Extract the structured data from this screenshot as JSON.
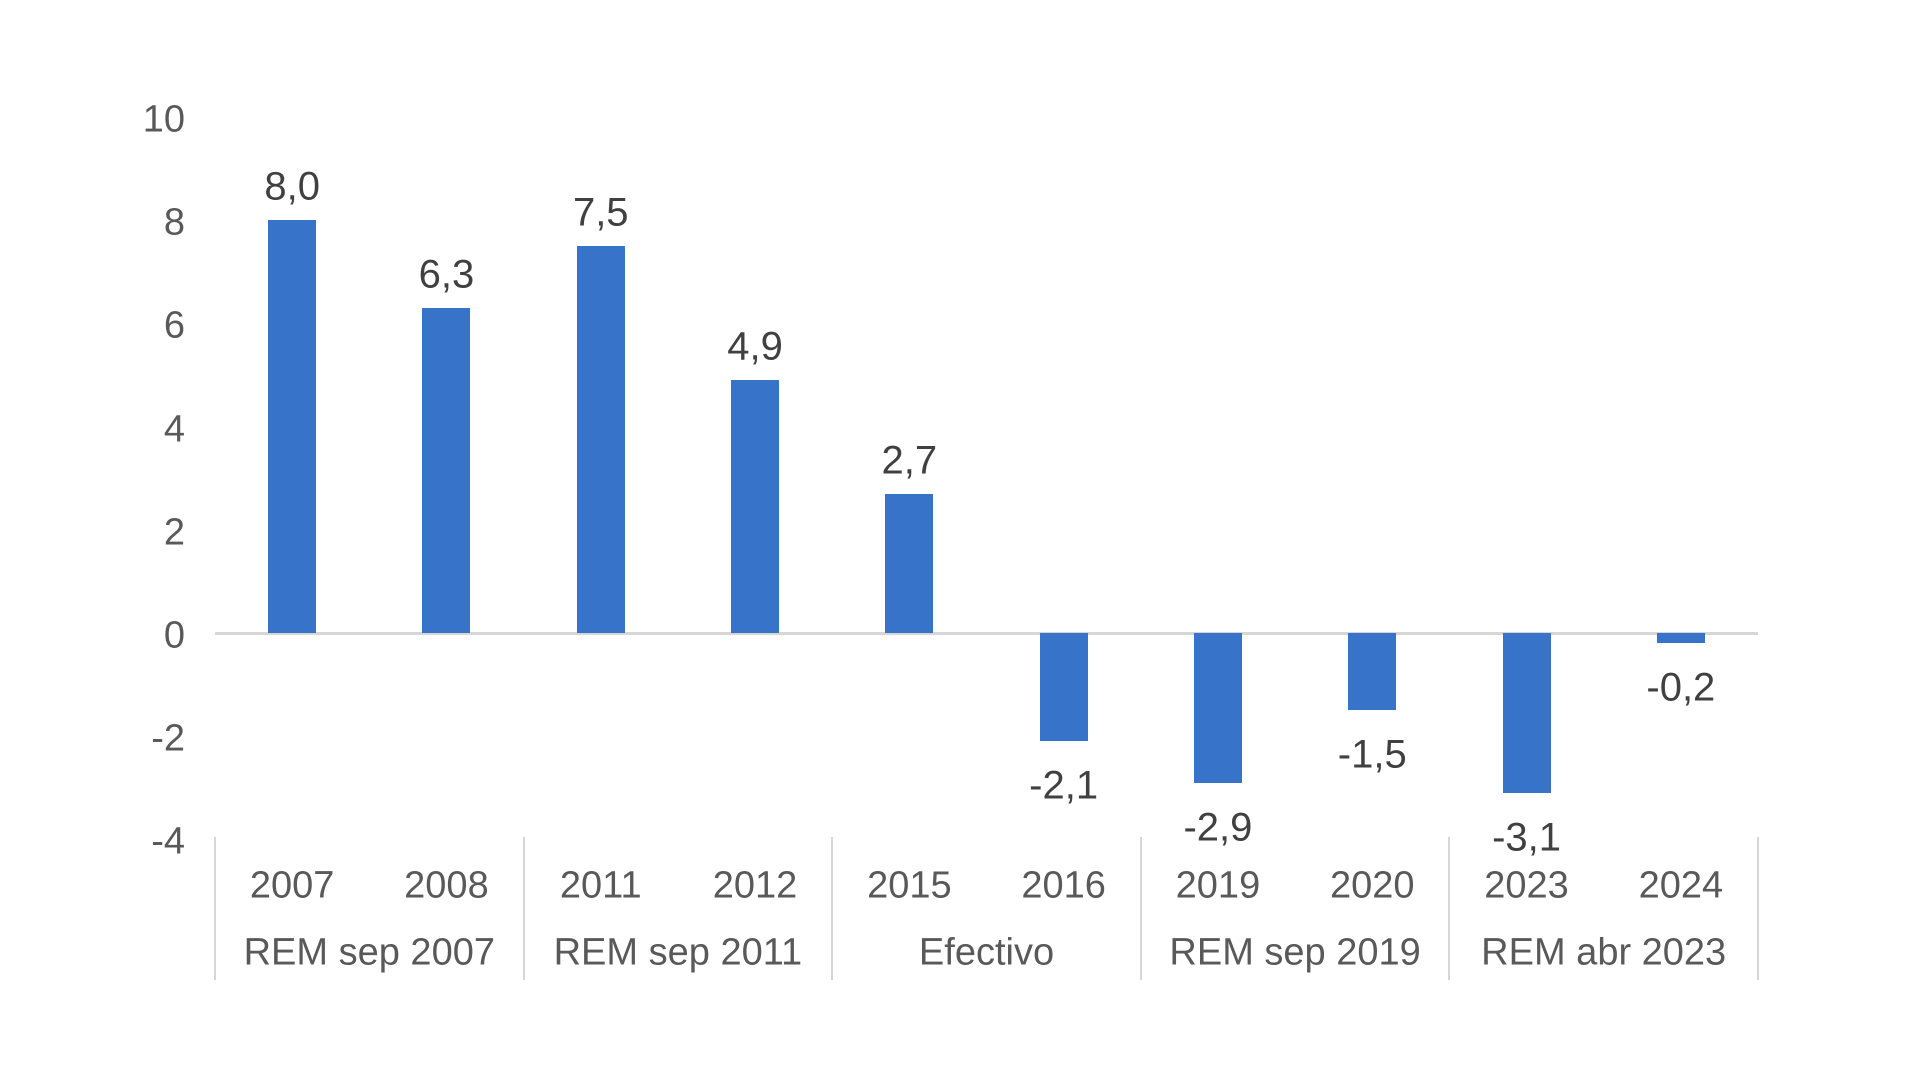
{
  "chart_data": {
    "type": "bar",
    "title": "",
    "legend": null,
    "grid": false,
    "decimal_separator": ",",
    "ylim": [
      -4,
      10
    ],
    "yticks": [
      10,
      8,
      6,
      4,
      2,
      0,
      -2,
      -4
    ],
    "ytick_labels": [
      "10",
      "8",
      "6",
      "4",
      "2",
      "0",
      "-2",
      "-4"
    ],
    "categories": [
      "2007",
      "2008",
      "2011",
      "2012",
      "2015",
      "2016",
      "2019",
      "2020",
      "2023",
      "2024"
    ],
    "values": [
      8.0,
      6.3,
      7.5,
      4.9,
      2.7,
      -2.1,
      -2.9,
      -1.5,
      -3.1,
      -0.2
    ],
    "value_labels": [
      "8,0",
      "6,3",
      "7,5",
      "4,9",
      "2,7",
      "-2,1",
      "-2,9",
      "-1,5",
      "-3,1",
      "-0,2"
    ],
    "groups": [
      {
        "label": "REM sep 2007",
        "bars": [
          {
            "category": "2007",
            "value": 8.0,
            "value_label": "8,0"
          },
          {
            "category": "2008",
            "value": 6.3,
            "value_label": "6,3"
          }
        ]
      },
      {
        "label": "REM sep 2011",
        "bars": [
          {
            "category": "2011",
            "value": 7.5,
            "value_label": "7,5"
          },
          {
            "category": "2012",
            "value": 4.9,
            "value_label": "4,9"
          }
        ]
      },
      {
        "label": "Efectivo",
        "bars": [
          {
            "category": "2015",
            "value": 2.7,
            "value_label": "2,7"
          },
          {
            "category": "2016",
            "value": -2.1,
            "value_label": "-2,1"
          }
        ]
      },
      {
        "label": "REM sep 2019",
        "bars": [
          {
            "category": "2019",
            "value": -2.9,
            "value_label": "-2,9"
          },
          {
            "category": "2020",
            "value": -1.5,
            "value_label": "-1,5"
          }
        ]
      },
      {
        "label": "REM abr 2023",
        "bars": [
          {
            "category": "2023",
            "value": -3.1,
            "value_label": "-3,1"
          },
          {
            "category": "2024",
            "value": -0.2,
            "value_label": "-0,2"
          }
        ]
      }
    ],
    "colors": {
      "bar": "#3773c8",
      "axis_line": "#d6d6d6",
      "separator": "#d6d6d6",
      "tick_text": "#595959",
      "value_text": "#404040",
      "background": "#ffffff"
    }
  }
}
